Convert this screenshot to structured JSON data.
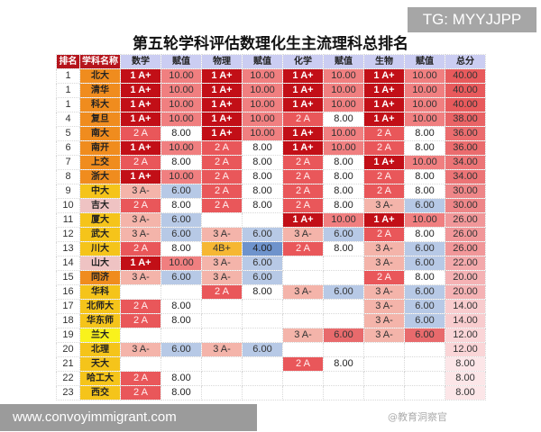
{
  "title": "第五轮学科评估数理化生主流理科总排名",
  "tg_badge": "TG: MYYJJPP",
  "banner": "www.convoyimmigrant.com",
  "watermark": "@教育洞察官",
  "headers": [
    "排名",
    "学科名称",
    "数学",
    "赋值",
    "物理",
    "赋值",
    "化学",
    "赋值",
    "生物",
    "赋值",
    "总分"
  ],
  "colors": {
    "name_orange": "#f08c1e",
    "name_yellow": "#f5c41a",
    "name_pink": "#efc3c3",
    "name_bright": "#f9f21c",
    "header_dark": "#b5141c",
    "header_light": "#cbcdf2"
  },
  "rows": [
    {
      "rank": "1",
      "name": "北大",
      "nc": "orange",
      "cells": [
        "1 A+",
        "10.00",
        "1 A+",
        "10.00",
        "1 A+",
        "10.00",
        "1 A+",
        "10.00"
      ],
      "total": "40.00"
    },
    {
      "rank": "1",
      "name": "清华",
      "nc": "orange",
      "cells": [
        "1 A+",
        "10.00",
        "1 A+",
        "10.00",
        "1 A+",
        "10.00",
        "1 A+",
        "10.00"
      ],
      "total": "40.00"
    },
    {
      "rank": "1",
      "name": "科大",
      "nc": "orange",
      "cells": [
        "1 A+",
        "10.00",
        "1 A+",
        "10.00",
        "1 A+",
        "10.00",
        "1 A+",
        "10.00"
      ],
      "total": "40.00"
    },
    {
      "rank": "4",
      "name": "复旦",
      "nc": "orange",
      "cells": [
        "1 A+",
        "10.00",
        "1 A+",
        "10.00",
        "2 A",
        "8.00",
        "1 A+",
        "10.00"
      ],
      "total": "38.00"
    },
    {
      "rank": "5",
      "name": "南大",
      "nc": "orange",
      "cells": [
        "2 A",
        "8.00",
        "1 A+",
        "10.00",
        "1 A+",
        "10.00",
        "2 A",
        "8.00"
      ],
      "total": "36.00"
    },
    {
      "rank": "6",
      "name": "南开",
      "nc": "orange",
      "cells": [
        "1 A+",
        "10.00",
        "2 A",
        "8.00",
        "1 A+",
        "10.00",
        "2 A",
        "8.00"
      ],
      "total": "36.00"
    },
    {
      "rank": "7",
      "name": "上交",
      "nc": "orange",
      "cells": [
        "2 A",
        "8.00",
        "2 A",
        "8.00",
        "2 A",
        "8.00",
        "1 A+",
        "10.00"
      ],
      "total": "34.00"
    },
    {
      "rank": "8",
      "name": "浙大",
      "nc": "orange",
      "cells": [
        "1 A+",
        "10.00",
        "2 A",
        "8.00",
        "2 A",
        "8.00",
        "2 A",
        "8.00"
      ],
      "total": "34.00"
    },
    {
      "rank": "9",
      "name": "中大",
      "nc": "yellow",
      "cells": [
        "3 A-",
        "6.00",
        "2 A",
        "8.00",
        "2 A",
        "8.00",
        "2 A",
        "8.00"
      ],
      "total": "30.00"
    },
    {
      "rank": "10",
      "name": "吉大",
      "nc": "pink",
      "cells": [
        "2 A",
        "8.00",
        "2 A",
        "8.00",
        "2 A",
        "8.00",
        "3 A-",
        "6.00"
      ],
      "total": "30.00"
    },
    {
      "rank": "11",
      "name": "厦大",
      "nc": "yellow",
      "cells": [
        "3 A-",
        "6.00",
        "",
        "",
        "1 A+",
        "10.00",
        "1 A+",
        "10.00"
      ],
      "total": "26.00"
    },
    {
      "rank": "12",
      "name": "武大",
      "nc": "yellow",
      "cells": [
        "3 A-",
        "6.00",
        "3 A-",
        "6.00",
        "3 A-",
        "6.00",
        "2 A",
        "8.00"
      ],
      "total": "26.00"
    },
    {
      "rank": "13",
      "name": "川大",
      "nc": "yellow",
      "cells": [
        "2 A",
        "8.00",
        "4B+",
        "4.00",
        "2 A",
        "8.00",
        "3 A-",
        "6.00"
      ],
      "total": "26.00"
    },
    {
      "rank": "14",
      "name": "山大",
      "nc": "pink",
      "cells": [
        "1 A+",
        "10.00",
        "3 A-",
        "6.00",
        "",
        "",
        "3 A-",
        "6.00"
      ],
      "total": "22.00"
    },
    {
      "rank": "15",
      "name": "同济",
      "nc": "orange",
      "cells": [
        "3 A-",
        "6.00",
        "3 A-",
        "6.00",
        "",
        "",
        "2 A",
        "8.00"
      ],
      "total": "20.00"
    },
    {
      "rank": "16",
      "name": "华科",
      "nc": "yellow",
      "cells": [
        "",
        "",
        "2 A",
        "8.00",
        "3 A-",
        "6.00",
        "3 A-",
        "6.00"
      ],
      "total": "20.00"
    },
    {
      "rank": "17",
      "name": "北师大",
      "nc": "yellow",
      "cells": [
        "2 A",
        "8.00",
        "",
        "",
        "",
        "",
        "3 A-",
        "6.00"
      ],
      "total": "14.00"
    },
    {
      "rank": "18",
      "name": "华东师",
      "nc": "yellow",
      "cells": [
        "2 A",
        "8.00",
        "",
        "",
        "",
        "",
        "3 A-",
        "6.00"
      ],
      "total": "14.00"
    },
    {
      "rank": "19",
      "name": "兰大",
      "nc": "bright",
      "red_scores": true,
      "cells": [
        "",
        "",
        "",
        "",
        "3 A-",
        "6.00",
        "3 A-",
        "6.00"
      ],
      "total": "12.00"
    },
    {
      "rank": "20",
      "name": "北理",
      "nc": "yellow",
      "cells": [
        "3 A-",
        "6.00",
        "3 A-",
        "6.00",
        "",
        "",
        "",
        ""
      ],
      "total": "12.00"
    },
    {
      "rank": "21",
      "name": "天大",
      "nc": "yellow",
      "cells": [
        "",
        "",
        "",
        "",
        "2 A",
        "8.00",
        "",
        ""
      ],
      "total": "8.00"
    },
    {
      "rank": "22",
      "name": "哈工大",
      "nc": "yellow",
      "cells": [
        "2 A",
        "8.00",
        "",
        "",
        "",
        "",
        "",
        ""
      ],
      "total": "8.00"
    },
    {
      "rank": "23",
      "name": "西交",
      "nc": "yellow",
      "cells": [
        "2 A",
        "8.00",
        "",
        "",
        "",
        "",
        "",
        ""
      ],
      "total": "8.00"
    }
  ]
}
